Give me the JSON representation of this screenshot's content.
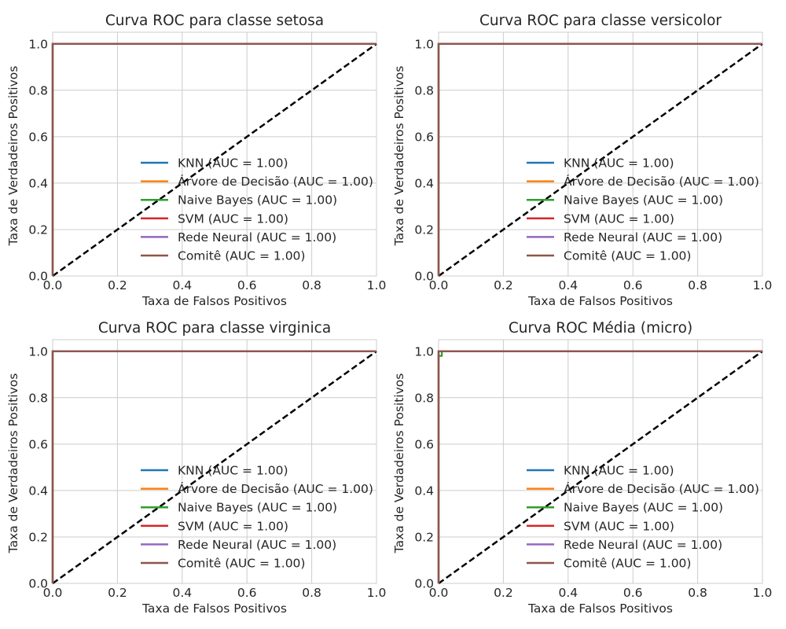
{
  "chart_data": [
    {
      "type": "line",
      "title": "Curva ROC para classe setosa",
      "xlabel": "Taxa de Falsos Positivos",
      "ylabel": "Taxa de Verdadeiros Positivos",
      "xlim": [
        0.0,
        1.0
      ],
      "ylim": [
        0.0,
        1.05
      ],
      "xticks": [
        "0.0",
        "0.2",
        "0.4",
        "0.6",
        "0.8",
        "1.0"
      ],
      "yticks": [
        "0.0",
        "0.2",
        "0.4",
        "0.6",
        "0.8",
        "1.0"
      ],
      "grid": true,
      "legend_position": "lower-center",
      "series": [
        {
          "name": "KNN (AUC = 1.00)",
          "color": "#1f77b4",
          "x": [
            0,
            0,
            1
          ],
          "y": [
            0,
            1,
            1
          ]
        },
        {
          "name": "Árvore de Decisão (AUC = 1.00)",
          "color": "#ff7f0e",
          "x": [
            0,
            0,
            1
          ],
          "y": [
            0,
            1,
            1
          ]
        },
        {
          "name": "Naive Bayes (AUC = 1.00)",
          "color": "#2ca02c",
          "x": [
            0,
            0,
            1
          ],
          "y": [
            0,
            1,
            1
          ]
        },
        {
          "name": "SVM (AUC = 1.00)",
          "color": "#d62728",
          "x": [
            0,
            0,
            1
          ],
          "y": [
            0,
            1,
            1
          ]
        },
        {
          "name": "Rede Neural (AUC = 1.00)",
          "color": "#9467bd",
          "x": [
            0,
            0,
            1
          ],
          "y": [
            0,
            1,
            1
          ]
        },
        {
          "name": "Comitê (AUC = 1.00)",
          "color": "#8c564b",
          "x": [
            0,
            0,
            1
          ],
          "y": [
            0,
            1,
            1
          ]
        }
      ],
      "reference_line": {
        "x": [
          0,
          1
        ],
        "y": [
          0,
          1
        ],
        "color": "#000000",
        "style": "dashed"
      }
    },
    {
      "type": "line",
      "title": "Curva ROC para classe versicolor",
      "xlabel": "Taxa de Falsos Positivos",
      "ylabel": "Taxa de Verdadeiros Positivos",
      "xlim": [
        0.0,
        1.0
      ],
      "ylim": [
        0.0,
        1.05
      ],
      "xticks": [
        "0.0",
        "0.2",
        "0.4",
        "0.6",
        "0.8",
        "1.0"
      ],
      "yticks": [
        "0.0",
        "0.2",
        "0.4",
        "0.6",
        "0.8",
        "1.0"
      ],
      "grid": true,
      "legend_position": "lower-center",
      "series": [
        {
          "name": "KNN (AUC = 1.00)",
          "color": "#1f77b4",
          "x": [
            0,
            0,
            1
          ],
          "y": [
            0,
            1,
            1
          ]
        },
        {
          "name": "Árvore de Decisão (AUC = 1.00)",
          "color": "#ff7f0e",
          "x": [
            0,
            0,
            1
          ],
          "y": [
            0,
            1,
            1
          ]
        },
        {
          "name": "Naive Bayes (AUC = 1.00)",
          "color": "#2ca02c",
          "x": [
            0,
            0,
            1
          ],
          "y": [
            0,
            1,
            1
          ]
        },
        {
          "name": "SVM (AUC = 1.00)",
          "color": "#d62728",
          "x": [
            0,
            0,
            1
          ],
          "y": [
            0,
            1,
            1
          ]
        },
        {
          "name": "Rede Neural (AUC = 1.00)",
          "color": "#9467bd",
          "x": [
            0,
            0,
            1
          ],
          "y": [
            0,
            1,
            1
          ]
        },
        {
          "name": "Comitê (AUC = 1.00)",
          "color": "#8c564b",
          "x": [
            0,
            0,
            1
          ],
          "y": [
            0,
            1,
            1
          ]
        }
      ],
      "reference_line": {
        "x": [
          0,
          1
        ],
        "y": [
          0,
          1
        ],
        "color": "#000000",
        "style": "dashed"
      }
    },
    {
      "type": "line",
      "title": "Curva ROC para classe virginica",
      "xlabel": "Taxa de Falsos Positivos",
      "ylabel": "Taxa de Verdadeiros Positivos",
      "xlim": [
        0.0,
        1.0
      ],
      "ylim": [
        0.0,
        1.05
      ],
      "xticks": [
        "0.0",
        "0.2",
        "0.4",
        "0.6",
        "0.8",
        "1.0"
      ],
      "yticks": [
        "0.0",
        "0.2",
        "0.4",
        "0.6",
        "0.8",
        "1.0"
      ],
      "grid": true,
      "legend_position": "lower-center",
      "series": [
        {
          "name": "KNN (AUC = 1.00)",
          "color": "#1f77b4",
          "x": [
            0,
            0,
            1
          ],
          "y": [
            0,
            1,
            1
          ]
        },
        {
          "name": "Árvore de Decisão (AUC = 1.00)",
          "color": "#ff7f0e",
          "x": [
            0,
            0,
            1
          ],
          "y": [
            0,
            1,
            1
          ]
        },
        {
          "name": "Naive Bayes (AUC = 1.00)",
          "color": "#2ca02c",
          "x": [
            0,
            0,
            1
          ],
          "y": [
            0,
            1,
            1
          ]
        },
        {
          "name": "SVM (AUC = 1.00)",
          "color": "#d62728",
          "x": [
            0,
            0,
            1
          ],
          "y": [
            0,
            1,
            1
          ]
        },
        {
          "name": "Rede Neural (AUC = 1.00)",
          "color": "#9467bd",
          "x": [
            0,
            0,
            1
          ],
          "y": [
            0,
            1,
            1
          ]
        },
        {
          "name": "Comitê (AUC = 1.00)",
          "color": "#8c564b",
          "x": [
            0,
            0,
            1
          ],
          "y": [
            0,
            1,
            1
          ]
        }
      ],
      "reference_line": {
        "x": [
          0,
          1
        ],
        "y": [
          0,
          1
        ],
        "color": "#000000",
        "style": "dashed"
      }
    },
    {
      "type": "line",
      "title": "Curva ROC Média (micro)",
      "xlabel": "Taxa de Falsos Positivos",
      "ylabel": "Taxa de Verdadeiros Positivos",
      "xlim": [
        0.0,
        1.0
      ],
      "ylim": [
        0.0,
        1.05
      ],
      "xticks": [
        "0.0",
        "0.2",
        "0.4",
        "0.6",
        "0.8",
        "1.0"
      ],
      "yticks": [
        "0.0",
        "0.2",
        "0.4",
        "0.6",
        "0.8",
        "1.0"
      ],
      "grid": true,
      "legend_position": "lower-center",
      "series": [
        {
          "name": "KNN (AUC = 1.00)",
          "color": "#1f77b4",
          "x": [
            0,
            0,
            1
          ],
          "y": [
            0,
            1,
            1
          ]
        },
        {
          "name": "Árvore de Decisão (AUC = 1.00)",
          "color": "#ff7f0e",
          "x": [
            0,
            0,
            1
          ],
          "y": [
            0,
            1,
            1
          ]
        },
        {
          "name": "Naive Bayes (AUC = 1.00)",
          "color": "#2ca02c",
          "x": [
            0,
            0,
            0.01,
            0.01,
            1
          ],
          "y": [
            0,
            0.98,
            0.98,
            1,
            1
          ]
        },
        {
          "name": "SVM (AUC = 1.00)",
          "color": "#d62728",
          "x": [
            0,
            0,
            1
          ],
          "y": [
            0,
            1,
            1
          ]
        },
        {
          "name": "Rede Neural (AUC = 1.00)",
          "color": "#9467bd",
          "x": [
            0,
            0,
            1
          ],
          "y": [
            0,
            1,
            1
          ]
        },
        {
          "name": "Comitê (AUC = 1.00)",
          "color": "#8c564b",
          "x": [
            0,
            0,
            1
          ],
          "y": [
            0,
            1,
            1
          ]
        }
      ],
      "reference_line": {
        "x": [
          0,
          1
        ],
        "y": [
          0,
          1
        ],
        "color": "#000000",
        "style": "dashed"
      }
    }
  ]
}
